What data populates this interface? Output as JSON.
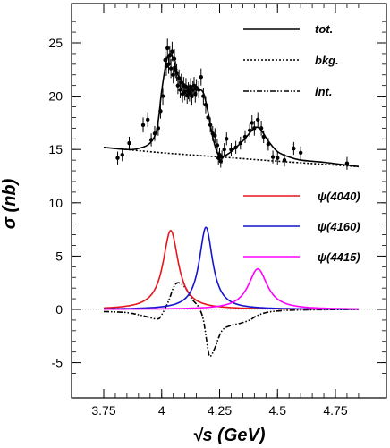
{
  "chart_data": {
    "type": "line",
    "xlabel": "√s (GeV)",
    "ylabel": "σ (nb)",
    "xlim": [
      3.75,
      4.85
    ],
    "ylim": [
      -6.5,
      28
    ],
    "x_ticks": [
      3.75,
      4,
      4.25,
      4.5,
      4.75
    ],
    "x_tick_labels": [
      "3.75",
      "4",
      "4.25",
      "4.5",
      "4.75"
    ],
    "y_ticks": [
      -5,
      0,
      5,
      10,
      15,
      20,
      25
    ],
    "y_tick_labels": [
      "-5",
      "0",
      "5",
      "10",
      "15",
      "20",
      "25"
    ],
    "grid": false,
    "legend_upper": [
      {
        "label": "tot.",
        "color": "#000000",
        "style": "solid"
      },
      {
        "label": "bkg.",
        "color": "#000000",
        "style": "dotted"
      },
      {
        "label": "int.",
        "color": "#000000",
        "style": "dashdot"
      }
    ],
    "legend_lower": [
      {
        "label": "ψ(4040)",
        "color": "#e8141e",
        "style": "solid"
      },
      {
        "label": "ψ(4160)",
        "color": "#1414d2",
        "style": "solid"
      },
      {
        "label": "ψ(4415)",
        "color": "#ff00ff",
        "style": "solid"
      }
    ],
    "series": [
      {
        "name": "tot.",
        "color": "#000000",
        "points": [
          [
            3.75,
            15.2
          ],
          [
            3.85,
            15.0
          ],
          [
            3.9,
            15.1
          ],
          [
            3.95,
            15.6
          ],
          [
            3.98,
            17.0
          ],
          [
            4.0,
            20.5
          ],
          [
            4.02,
            23.2
          ],
          [
            4.035,
            24.0
          ],
          [
            4.05,
            23.5
          ],
          [
            4.07,
            22.0
          ],
          [
            4.1,
            21.0
          ],
          [
            4.13,
            20.6
          ],
          [
            4.16,
            20.6
          ],
          [
            4.18,
            20.3
          ],
          [
            4.2,
            18.5
          ],
          [
            4.22,
            16.2
          ],
          [
            4.24,
            14.7
          ],
          [
            4.26,
            14.3
          ],
          [
            4.3,
            14.8
          ],
          [
            4.35,
            15.8
          ],
          [
            4.39,
            16.8
          ],
          [
            4.41,
            17.1
          ],
          [
            4.43,
            16.8
          ],
          [
            4.46,
            15.8
          ],
          [
            4.5,
            14.8
          ],
          [
            4.55,
            14.3
          ],
          [
            4.6,
            14.0
          ],
          [
            4.7,
            13.8
          ],
          [
            4.85,
            13.4
          ]
        ]
      },
      {
        "name": "bkg.",
        "color": "#000000",
        "points": [
          [
            3.75,
            15.2
          ],
          [
            4.0,
            14.7
          ],
          [
            4.25,
            14.3
          ],
          [
            4.5,
            13.9
          ],
          [
            4.85,
            13.4
          ]
        ]
      },
      {
        "name": "int.",
        "color": "#000000",
        "points": [
          [
            3.75,
            -0.2
          ],
          [
            3.85,
            -0.3
          ],
          [
            3.92,
            -0.6
          ],
          [
            3.98,
            -0.9
          ],
          [
            4.0,
            -0.5
          ],
          [
            4.03,
            0.8
          ],
          [
            4.05,
            2.0
          ],
          [
            4.07,
            2.5
          ],
          [
            4.1,
            2.1
          ],
          [
            4.13,
            1.0
          ],
          [
            4.16,
            0.2
          ],
          [
            4.18,
            -1.0
          ],
          [
            4.2,
            -3.8
          ],
          [
            4.21,
            -4.4
          ],
          [
            4.23,
            -3.6
          ],
          [
            4.26,
            -2.0
          ],
          [
            4.3,
            -1.5
          ],
          [
            4.34,
            -1.3
          ],
          [
            4.38,
            -1.0
          ],
          [
            4.41,
            -0.6
          ],
          [
            4.45,
            -0.3
          ],
          [
            4.5,
            -0.15
          ],
          [
            4.6,
            -0.05
          ],
          [
            4.85,
            0.0
          ]
        ]
      },
      {
        "name": "ψ(4040)",
        "color": "#e8141e",
        "peak": [
          4.039,
          7.4
        ],
        "half_width": 0.04
      },
      {
        "name": "ψ(4160)",
        "color": "#1414d2",
        "peak": [
          4.191,
          7.7
        ],
        "half_width": 0.035
      },
      {
        "name": "ψ(4415)",
        "color": "#ff00ff",
        "peak": [
          4.415,
          3.8
        ],
        "half_width": 0.05
      }
    ],
    "data_points": [
      [
        3.81,
        14.2,
        0.6
      ],
      [
        3.83,
        14.5,
        0.6
      ],
      [
        3.86,
        15.6,
        0.6
      ],
      [
        3.92,
        17.3,
        0.7
      ],
      [
        3.94,
        17.8,
        0.7
      ],
      [
        3.955,
        15.9,
        0.6
      ],
      [
        3.97,
        16.5,
        0.7
      ],
      [
        3.985,
        17.0,
        0.7
      ],
      [
        3.995,
        18.6,
        0.7
      ],
      [
        4.005,
        20.0,
        0.8
      ],
      [
        4.015,
        23.4,
        0.9
      ],
      [
        4.02,
        22.8,
        0.9
      ],
      [
        4.025,
        24.5,
        0.9
      ],
      [
        4.03,
        23.0,
        0.9
      ],
      [
        4.035,
        23.8,
        0.9
      ],
      [
        4.04,
        22.6,
        0.9
      ],
      [
        4.045,
        24.2,
        0.9
      ],
      [
        4.05,
        22.0,
        0.8
      ],
      [
        4.055,
        23.5,
        0.9
      ],
      [
        4.06,
        22.5,
        0.8
      ],
      [
        4.065,
        22.2,
        0.8
      ],
      [
        4.07,
        21.0,
        0.8
      ],
      [
        4.075,
        21.7,
        0.8
      ],
      [
        4.08,
        20.6,
        0.8
      ],
      [
        4.085,
        21.3,
        0.8
      ],
      [
        4.09,
        20.2,
        0.8
      ],
      [
        4.095,
        21.0,
        0.8
      ],
      [
        4.1,
        20.4,
        0.8
      ],
      [
        4.105,
        20.9,
        0.8
      ],
      [
        4.11,
        20.1,
        0.8
      ],
      [
        4.115,
        20.5,
        0.8
      ],
      [
        4.12,
        20.3,
        0.8
      ],
      [
        4.125,
        20.9,
        0.8
      ],
      [
        4.13,
        20.0,
        0.8
      ],
      [
        4.135,
        20.6,
        0.8
      ],
      [
        4.14,
        21.0,
        0.8
      ],
      [
        4.145,
        20.2,
        0.8
      ],
      [
        4.15,
        20.8,
        0.8
      ],
      [
        4.16,
        20.6,
        0.8
      ],
      [
        4.17,
        21.8,
        0.8
      ],
      [
        4.18,
        20.0,
        0.8
      ],
      [
        4.19,
        19.2,
        0.8
      ],
      [
        4.2,
        18.0,
        0.7
      ],
      [
        4.21,
        17.3,
        0.7
      ],
      [
        4.22,
        16.5,
        0.7
      ],
      [
        4.23,
        16.3,
        0.7
      ],
      [
        4.24,
        15.4,
        0.6
      ],
      [
        4.245,
        14.2,
        0.6
      ],
      [
        4.25,
        14.5,
        0.6
      ],
      [
        4.255,
        13.9,
        0.6
      ],
      [
        4.26,
        14.3,
        0.6
      ],
      [
        4.27,
        15.0,
        0.6
      ],
      [
        4.28,
        16.0,
        0.6
      ],
      [
        4.3,
        15.0,
        0.6
      ],
      [
        4.32,
        15.2,
        0.6
      ],
      [
        4.34,
        15.6,
        0.6
      ],
      [
        4.36,
        16.2,
        0.6
      ],
      [
        4.38,
        16.8,
        0.6
      ],
      [
        4.39,
        17.5,
        0.7
      ],
      [
        4.4,
        17.0,
        0.7
      ],
      [
        4.415,
        17.8,
        0.7
      ],
      [
        4.43,
        17.0,
        0.7
      ],
      [
        4.44,
        16.2,
        0.6
      ],
      [
        4.46,
        15.5,
        0.6
      ],
      [
        4.48,
        14.3,
        0.6
      ],
      [
        4.5,
        14.2,
        0.6
      ],
      [
        4.53,
        14.0,
        0.6
      ],
      [
        4.57,
        15.1,
        0.6
      ],
      [
        4.6,
        14.7,
        0.6
      ],
      [
        4.8,
        13.7,
        0.6
      ]
    ]
  }
}
